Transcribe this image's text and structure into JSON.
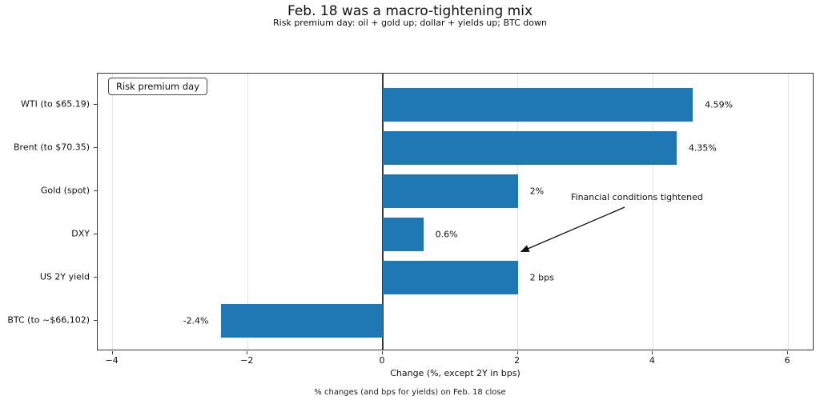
{
  "chart_data": {
    "type": "bar",
    "orientation": "horizontal",
    "title": "Feb. 18 was a macro-tightening mix",
    "subtitle": "Risk premium day: oil + gold up; dollar + yields up; BTC down",
    "categories": [
      "WTI (to $65.19)",
      "Brent (to $70.35)",
      "Gold (spot)",
      "DXY",
      "US 2Y yield",
      "BTC (to ~$66,102)"
    ],
    "values": [
      4.59,
      4.35,
      2.0,
      0.6,
      2.0,
      -2.4
    ],
    "value_labels": [
      "4.59%",
      "4.35%",
      "2%",
      "0.6%",
      "2 bps",
      "-2.4%"
    ],
    "xlabel": "Change (%, except 2Y in bps)",
    "xticks": [
      -4,
      -2,
      0,
      2,
      4,
      6
    ],
    "xtick_labels": [
      "−4",
      "−2",
      "0",
      "2",
      "4",
      "6"
    ],
    "xlim": [
      -4.22,
      6.39
    ],
    "bar_color": "#1f77b4",
    "grid": true,
    "gridline_color": "#e4e4e4",
    "zero_line": true,
    "legend_label": "Risk premium day",
    "legend_position": "upper-left",
    "annotation": "Financial conditions tightened",
    "caption": "% changes (and bps for yields) on Feb. 18 close"
  }
}
